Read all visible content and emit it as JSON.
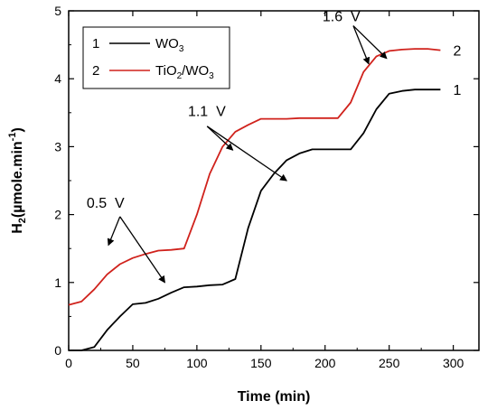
{
  "chart_data": {
    "type": "line",
    "xlabel": "Time (min)",
    "ylabel": "H2(µmole.min-1)",
    "ylabel_parts": {
      "main": "H",
      "sub": "2",
      "unit": "(µmole.min",
      "sup": "-1",
      "close": ")"
    },
    "xlim": [
      0,
      320
    ],
    "ylim": [
      0,
      5
    ],
    "xticks": [
      0,
      50,
      100,
      150,
      200,
      250,
      300
    ],
    "yticks": [
      0,
      1,
      2,
      3,
      4,
      5
    ],
    "grid": false,
    "legend_position": "top-left",
    "series": [
      {
        "name": "WO3",
        "legend_number": "1",
        "legend_parts": {
          "main": "WO",
          "sub": "3",
          "rest": ""
        },
        "end_label": "1",
        "color": "#000000",
        "x": [
          0,
          10,
          20,
          30,
          40,
          50,
          60,
          70,
          80,
          90,
          100,
          110,
          120,
          130,
          140,
          150,
          160,
          170,
          180,
          190,
          200,
          210,
          220,
          230,
          240,
          250,
          260,
          270,
          280,
          290
        ],
        "y": [
          0.0,
          0.0,
          0.05,
          0.3,
          0.5,
          0.68,
          0.7,
          0.76,
          0.85,
          0.93,
          0.94,
          0.96,
          0.97,
          1.05,
          1.8,
          2.35,
          2.6,
          2.8,
          2.9,
          2.96,
          2.96,
          2.96,
          2.96,
          3.2,
          3.55,
          3.78,
          3.82,
          3.84,
          3.84,
          3.84
        ]
      },
      {
        "name": "TiO2/WO3",
        "legend_number": "2",
        "legend_parts": {
          "main": "TiO",
          "sub": "2",
          "rest": "/WO",
          "sub2": "3"
        },
        "end_label": "2",
        "color": "#d0221c",
        "x": [
          0,
          10,
          20,
          30,
          40,
          50,
          60,
          70,
          80,
          90,
          100,
          110,
          120,
          130,
          140,
          150,
          160,
          170,
          180,
          190,
          200,
          210,
          220,
          230,
          240,
          250,
          260,
          270,
          280,
          290
        ],
        "y": [
          0.67,
          0.72,
          0.9,
          1.12,
          1.27,
          1.36,
          1.42,
          1.47,
          1.48,
          1.5,
          2.0,
          2.6,
          3.0,
          3.22,
          3.32,
          3.41,
          3.41,
          3.41,
          3.42,
          3.42,
          3.42,
          3.42,
          3.65,
          4.1,
          4.33,
          4.41,
          4.43,
          4.44,
          4.44,
          4.42
        ]
      }
    ],
    "annotations": [
      {
        "text": "0.5  V",
        "label_at": [
          14,
          2.1
        ],
        "arrows": [
          {
            "from": [
              40,
              1.97
            ],
            "to": [
              75,
              1.0
            ]
          },
          {
            "from": [
              40,
              1.97
            ],
            "to": [
              31,
              1.55
            ]
          }
        ]
      },
      {
        "text": "1.1  V",
        "label_at": [
          93,
          3.45
        ],
        "arrows": [
          {
            "from": [
              108,
              3.3
            ],
            "to": [
              128,
              2.95
            ]
          },
          {
            "from": [
              108,
              3.3
            ],
            "to": [
              170,
              2.5
            ]
          }
        ]
      },
      {
        "text": "1.6  V",
        "label_at": [
          198,
          4.85
        ],
        "arrows": [
          {
            "from": [
              222,
              4.78
            ],
            "to": [
              234,
              4.22
            ]
          },
          {
            "from": [
              222,
              4.78
            ],
            "to": [
              248,
              4.3
            ]
          }
        ]
      }
    ]
  }
}
